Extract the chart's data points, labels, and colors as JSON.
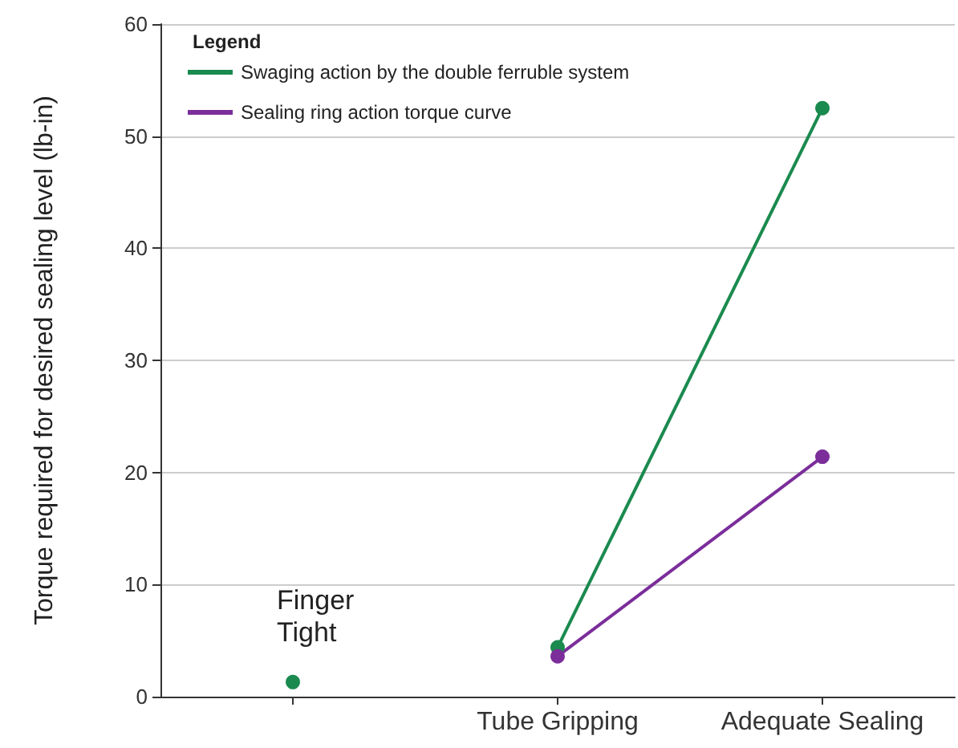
{
  "chart_data": {
    "type": "line",
    "ylabel": "Torque required for desired sealing level (lb-in)",
    "legend_title": "Legend",
    "categories": [
      null,
      "Tube Gripping",
      "Adequate Sealing"
    ],
    "series": [
      {
        "name": "Swaging action by the double ferruble system",
        "color": "#1a8a4e",
        "values": [
          null,
          4.4,
          52.5
        ]
      },
      {
        "name": "Sealing ring action torque curve",
        "color": "#7b2d9a",
        "values": [
          null,
          3.6,
          21.4
        ]
      },
      {
        "type": "scatter",
        "color": "#1a8a4e",
        "values": [
          1.3,
          null,
          null
        ]
      }
    ],
    "annotations": [
      "Finger Tight"
    ],
    "ylim": [
      0,
      60
    ],
    "yticks": [
      0,
      10,
      20,
      30,
      40,
      50,
      60
    ],
    "grid": "y",
    "legend": "top left",
    "marker": "circle",
    "line_style": "solid"
  }
}
